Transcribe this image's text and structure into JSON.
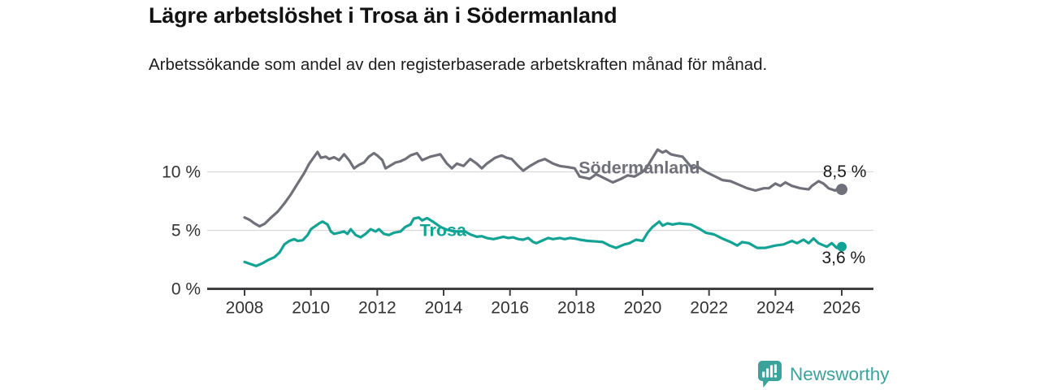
{
  "header": {
    "title": "Lägre arbetslöshet i Trosa än i Södermanland",
    "subtitle": "Arbetssökande som andel av den registerbaserade arbetskraften månad för månad."
  },
  "branding": {
    "name": "Newsworthy",
    "logo_icon": "bar-chart-speech-bubble",
    "color": "#3aa39c"
  },
  "colors": {
    "trosa": "#12a394",
    "sodermanland": "#70707a",
    "grid": "#d9d9d9",
    "axis": "#3f3f42",
    "tick_text": "#333333",
    "value_text": "#1a1a1a"
  },
  "chart_data": {
    "type": "line",
    "title": "Lägre arbetslöshet i Trosa än i Södermanland",
    "xlabel": "",
    "ylabel": "",
    "unit": "%",
    "grid": "horizontal gridlines at 5 % and 10 %",
    "legend": "inline series labels",
    "xlim": [
      2007.9,
      2027.0
    ],
    "ylim": [
      0,
      12.5
    ],
    "yticks": [
      {
        "value": 0,
        "label": "0 %"
      },
      {
        "value": 5,
        "label": "5 %"
      },
      {
        "value": 10,
        "label": "10 %"
      }
    ],
    "xticks": [
      {
        "value": 2008,
        "label": "2008"
      },
      {
        "value": 2010,
        "label": "2010"
      },
      {
        "value": 2012,
        "label": "2012"
      },
      {
        "value": 2014,
        "label": "2014"
      },
      {
        "value": 2016,
        "label": "2016"
      },
      {
        "value": 2018,
        "label": "2018"
      },
      {
        "value": 2020,
        "label": "2020"
      },
      {
        "value": 2022,
        "label": "2022"
      },
      {
        "value": 2024,
        "label": "2024"
      },
      {
        "value": 2026,
        "label": "2026"
      }
    ],
    "series": [
      {
        "id": "sodermanland",
        "name": "Södermanland",
        "color": "#70707a",
        "label_anchor": {
          "year": 2018.07,
          "pct": 9.85
        },
        "end_label": {
          "text": "8,5 %",
          "year": 2025.43,
          "pct": 9.55
        },
        "end_value": 8.5,
        "points": [
          [
            2008.0,
            6.1
          ],
          [
            2008.15,
            5.9
          ],
          [
            2008.3,
            5.6
          ],
          [
            2008.45,
            5.35
          ],
          [
            2008.6,
            5.55
          ],
          [
            2008.8,
            6.1
          ],
          [
            2009.0,
            6.6
          ],
          [
            2009.2,
            7.3
          ],
          [
            2009.4,
            8.1
          ],
          [
            2009.6,
            9.0
          ],
          [
            2009.8,
            9.9
          ],
          [
            2009.95,
            10.7
          ],
          [
            2010.1,
            11.3
          ],
          [
            2010.2,
            11.7
          ],
          [
            2010.3,
            11.2
          ],
          [
            2010.45,
            11.3
          ],
          [
            2010.55,
            11.1
          ],
          [
            2010.7,
            11.25
          ],
          [
            2010.85,
            11.0
          ],
          [
            2011.0,
            11.5
          ],
          [
            2011.15,
            11.0
          ],
          [
            2011.3,
            10.3
          ],
          [
            2011.45,
            10.6
          ],
          [
            2011.6,
            10.8
          ],
          [
            2011.75,
            11.3
          ],
          [
            2011.9,
            11.6
          ],
          [
            2012.0,
            11.4
          ],
          [
            2012.15,
            11.0
          ],
          [
            2012.25,
            10.3
          ],
          [
            2012.4,
            10.55
          ],
          [
            2012.55,
            10.8
          ],
          [
            2012.7,
            10.9
          ],
          [
            2012.85,
            11.1
          ],
          [
            2013.0,
            11.4
          ],
          [
            2013.2,
            11.6
          ],
          [
            2013.35,
            11.0
          ],
          [
            2013.6,
            11.3
          ],
          [
            2013.9,
            11.5
          ],
          [
            2014.1,
            10.7
          ],
          [
            2014.25,
            10.3
          ],
          [
            2014.4,
            10.7
          ],
          [
            2014.6,
            10.5
          ],
          [
            2014.8,
            11.1
          ],
          [
            2015.0,
            10.7
          ],
          [
            2015.15,
            10.3
          ],
          [
            2015.3,
            10.7
          ],
          [
            2015.55,
            11.2
          ],
          [
            2015.75,
            11.4
          ],
          [
            2015.9,
            11.2
          ],
          [
            2016.05,
            11.1
          ],
          [
            2016.25,
            10.5
          ],
          [
            2016.4,
            10.1
          ],
          [
            2016.6,
            10.5
          ],
          [
            2016.85,
            10.9
          ],
          [
            2017.05,
            11.1
          ],
          [
            2017.3,
            10.7
          ],
          [
            2017.5,
            10.5
          ],
          [
            2017.75,
            10.4
          ],
          [
            2017.95,
            10.3
          ],
          [
            2018.1,
            9.6
          ],
          [
            2018.4,
            9.4
          ],
          [
            2018.6,
            9.8
          ],
          [
            2018.85,
            9.45
          ],
          [
            2019.1,
            9.1
          ],
          [
            2019.35,
            9.4
          ],
          [
            2019.55,
            9.7
          ],
          [
            2019.75,
            9.6
          ],
          [
            2020.0,
            10.0
          ],
          [
            2020.15,
            10.5
          ],
          [
            2020.3,
            11.2
          ],
          [
            2020.45,
            11.9
          ],
          [
            2020.6,
            11.65
          ],
          [
            2020.7,
            11.8
          ],
          [
            2020.85,
            11.5
          ],
          [
            2021.0,
            11.4
          ],
          [
            2021.2,
            11.3
          ],
          [
            2021.35,
            10.8
          ],
          [
            2021.5,
            10.3
          ],
          [
            2021.65,
            10.45
          ],
          [
            2021.9,
            10.0
          ],
          [
            2022.15,
            9.65
          ],
          [
            2022.4,
            9.3
          ],
          [
            2022.65,
            9.2
          ],
          [
            2022.9,
            8.9
          ],
          [
            2023.15,
            8.6
          ],
          [
            2023.4,
            8.4
          ],
          [
            2023.65,
            8.6
          ],
          [
            2023.8,
            8.6
          ],
          [
            2024.0,
            9.0
          ],
          [
            2024.15,
            8.8
          ],
          [
            2024.3,
            9.1
          ],
          [
            2024.5,
            8.8
          ],
          [
            2024.75,
            8.6
          ],
          [
            2025.0,
            8.5
          ],
          [
            2025.1,
            8.8
          ],
          [
            2025.3,
            9.2
          ],
          [
            2025.45,
            9.0
          ],
          [
            2025.6,
            8.6
          ],
          [
            2025.8,
            8.4
          ],
          [
            2025.9,
            8.6
          ],
          [
            2026.0,
            8.5
          ]
        ]
      },
      {
        "id": "trosa",
        "name": "Trosa",
        "color": "#12a394",
        "label_anchor": {
          "year": 2013.28,
          "pct": 4.5
        },
        "end_label": {
          "text": "3,6 %",
          "year": 2025.4,
          "pct": 2.2
        },
        "end_value": 3.6,
        "points": [
          [
            2008.0,
            2.3
          ],
          [
            2008.2,
            2.1
          ],
          [
            2008.35,
            1.95
          ],
          [
            2008.55,
            2.2
          ],
          [
            2008.7,
            2.45
          ],
          [
            2008.9,
            2.7
          ],
          [
            2009.05,
            3.1
          ],
          [
            2009.2,
            3.8
          ],
          [
            2009.35,
            4.1
          ],
          [
            2009.5,
            4.25
          ],
          [
            2009.6,
            4.1
          ],
          [
            2009.75,
            4.15
          ],
          [
            2009.9,
            4.6
          ],
          [
            2010.0,
            5.1
          ],
          [
            2010.1,
            5.3
          ],
          [
            2010.25,
            5.6
          ],
          [
            2010.35,
            5.75
          ],
          [
            2010.5,
            5.5
          ],
          [
            2010.6,
            4.9
          ],
          [
            2010.7,
            4.7
          ],
          [
            2010.85,
            4.8
          ],
          [
            2011.0,
            4.9
          ],
          [
            2011.1,
            4.7
          ],
          [
            2011.2,
            5.1
          ],
          [
            2011.35,
            4.6
          ],
          [
            2011.5,
            4.4
          ],
          [
            2011.65,
            4.7
          ],
          [
            2011.8,
            5.1
          ],
          [
            2011.95,
            4.9
          ],
          [
            2012.05,
            5.1
          ],
          [
            2012.2,
            4.7
          ],
          [
            2012.35,
            4.6
          ],
          [
            2012.5,
            4.8
          ],
          [
            2012.7,
            4.9
          ],
          [
            2012.85,
            5.3
          ],
          [
            2013.0,
            5.5
          ],
          [
            2013.1,
            6.0
          ],
          [
            2013.25,
            6.1
          ],
          [
            2013.35,
            5.85
          ],
          [
            2013.5,
            6.05
          ],
          [
            2013.7,
            5.7
          ],
          [
            2013.9,
            5.3
          ],
          [
            2014.1,
            5.05
          ],
          [
            2014.4,
            4.9
          ],
          [
            2014.65,
            4.9
          ],
          [
            2014.8,
            4.65
          ],
          [
            2015.0,
            4.45
          ],
          [
            2015.15,
            4.5
          ],
          [
            2015.3,
            4.35
          ],
          [
            2015.5,
            4.25
          ],
          [
            2015.65,
            4.35
          ],
          [
            2015.8,
            4.45
          ],
          [
            2015.95,
            4.35
          ],
          [
            2016.1,
            4.4
          ],
          [
            2016.25,
            4.25
          ],
          [
            2016.4,
            4.2
          ],
          [
            2016.55,
            4.35
          ],
          [
            2016.7,
            4.0
          ],
          [
            2016.8,
            3.9
          ],
          [
            2016.95,
            4.1
          ],
          [
            2017.15,
            4.35
          ],
          [
            2017.3,
            4.25
          ],
          [
            2017.5,
            4.35
          ],
          [
            2017.65,
            4.25
          ],
          [
            2017.8,
            4.35
          ],
          [
            2017.95,
            4.3
          ],
          [
            2018.1,
            4.2
          ],
          [
            2018.35,
            4.1
          ],
          [
            2018.6,
            4.05
          ],
          [
            2018.8,
            4.0
          ],
          [
            2019.0,
            3.7
          ],
          [
            2019.2,
            3.5
          ],
          [
            2019.45,
            3.8
          ],
          [
            2019.6,
            3.9
          ],
          [
            2019.8,
            4.2
          ],
          [
            2020.0,
            4.1
          ],
          [
            2020.15,
            4.8
          ],
          [
            2020.3,
            5.3
          ],
          [
            2020.5,
            5.75
          ],
          [
            2020.6,
            5.4
          ],
          [
            2020.75,
            5.6
          ],
          [
            2020.9,
            5.5
          ],
          [
            2021.1,
            5.6
          ],
          [
            2021.25,
            5.55
          ],
          [
            2021.45,
            5.5
          ],
          [
            2021.7,
            5.15
          ],
          [
            2021.9,
            4.8
          ],
          [
            2022.15,
            4.65
          ],
          [
            2022.4,
            4.3
          ],
          [
            2022.65,
            4.0
          ],
          [
            2022.85,
            3.7
          ],
          [
            2023.0,
            4.0
          ],
          [
            2023.2,
            3.9
          ],
          [
            2023.45,
            3.5
          ],
          [
            2023.7,
            3.5
          ],
          [
            2024.0,
            3.7
          ],
          [
            2024.25,
            3.8
          ],
          [
            2024.5,
            4.1
          ],
          [
            2024.65,
            3.9
          ],
          [
            2024.85,
            4.2
          ],
          [
            2025.0,
            3.9
          ],
          [
            2025.15,
            4.3
          ],
          [
            2025.3,
            3.9
          ],
          [
            2025.55,
            3.6
          ],
          [
            2025.7,
            3.9
          ],
          [
            2025.85,
            3.5
          ],
          [
            2026.0,
            3.6
          ]
        ]
      }
    ]
  }
}
